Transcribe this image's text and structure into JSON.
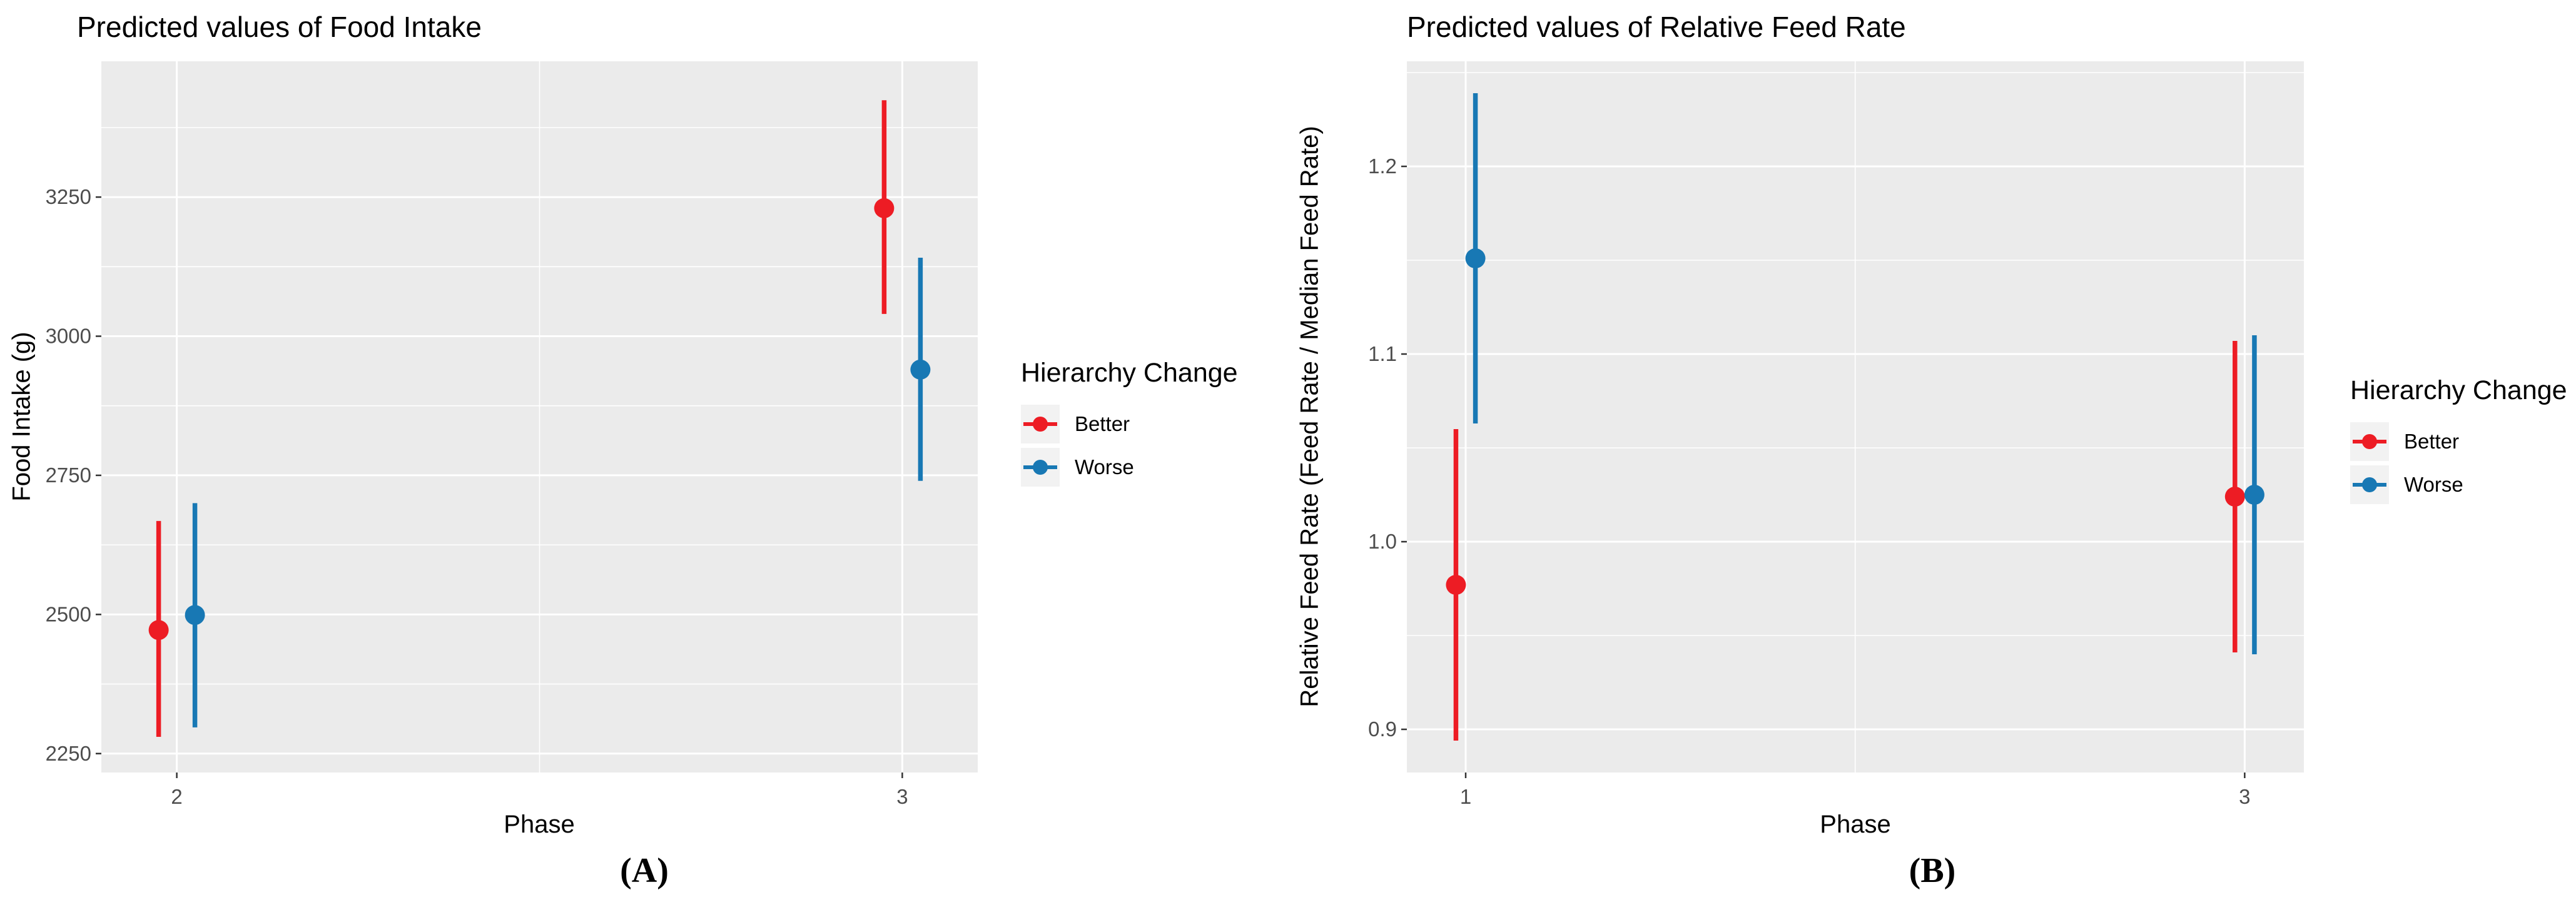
{
  "figure_background": "#FFFFFF",
  "theme": {
    "panel_background": "#EBEBEB",
    "grid_color": "#FFFFFF",
    "tick_mark_color": "#333333",
    "tick_label_color": "#4D4D4D",
    "text_color": "#000000",
    "legend_key_background": "#F2F2F2"
  },
  "chart_data": [
    {
      "type": "pointrange",
      "panel_label": "(A)",
      "title": "Predicted values of Food Intake",
      "xlabel": "Phase",
      "ylabel": "Food Intake (g)",
      "legend": {
        "title": "Hierarchy Change",
        "position": "right"
      },
      "x_ticks": [
        2,
        3
      ],
      "x_tick_labels": [
        "2",
        "3"
      ],
      "y_ticks": [
        2250,
        2500,
        2750,
        3000,
        3250
      ],
      "y_tick_labels": [
        "2250",
        "2500",
        "2750",
        "3000",
        "3250"
      ],
      "xlim": [
        1.896,
        3.104
      ],
      "ylim": [
        2216,
        3494
      ],
      "grid": true,
      "dodge_width": 0.05,
      "series": [
        {
          "name": "Better",
          "color": "#ED1C24",
          "points": [
            {
              "x": 2,
              "y": 2472,
              "ymin": 2280,
              "ymax": 2668
            },
            {
              "x": 3,
              "y": 3230,
              "ymin": 3040,
              "ymax": 3424
            }
          ]
        },
        {
          "name": "Worse",
          "color": "#1878B4",
          "points": [
            {
              "x": 2,
              "y": 2499,
              "ymin": 2297,
              "ymax": 2700
            },
            {
              "x": 3,
              "y": 2940,
              "ymin": 2740,
              "ymax": 3141
            }
          ]
        }
      ]
    },
    {
      "type": "pointrange",
      "panel_label": "(B)",
      "title": "Predicted values of Relative Feed Rate",
      "xlabel": "Phase",
      "ylabel": "Relative Feed Rate (Feed Rate / Median Feed Rate)",
      "legend": {
        "title": "Hierarchy Change",
        "position": "right"
      },
      "x_ticks": [
        1,
        3
      ],
      "x_tick_labels": [
        "1",
        "3"
      ],
      "y_ticks": [
        0.9,
        1.0,
        1.1,
        1.2
      ],
      "y_tick_labels": [
        "0.9",
        "1.0",
        "1.1",
        "1.2"
      ],
      "xlim": [
        0.849,
        3.152
      ],
      "ylim": [
        0.877,
        1.256
      ],
      "grid": true,
      "dodge_width": 0.05,
      "series": [
        {
          "name": "Better",
          "color": "#ED1C24",
          "points": [
            {
              "x": 1,
              "y": 0.977,
              "ymin": 0.894,
              "ymax": 1.06
            },
            {
              "x": 3,
              "y": 1.024,
              "ymin": 0.941,
              "ymax": 1.107
            }
          ]
        },
        {
          "name": "Worse",
          "color": "#1878B4",
          "points": [
            {
              "x": 1,
              "y": 1.151,
              "ymin": 1.063,
              "ymax": 1.239
            },
            {
              "x": 3,
              "y": 1.025,
              "ymin": 0.94,
              "ymax": 1.11
            }
          ]
        }
      ]
    }
  ]
}
